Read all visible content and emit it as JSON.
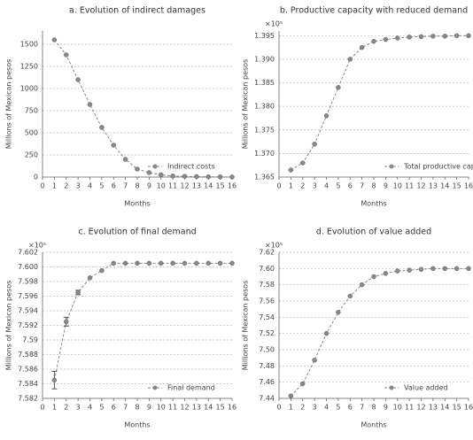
{
  "chart_data": [
    {
      "type": "line",
      "title": "a. Evolution of indirect damages",
      "xlabel": "Months",
      "ylabel": "Millions of Mexican pesos",
      "x": [
        1,
        2,
        3,
        4,
        5,
        6,
        7,
        8,
        9,
        10,
        11,
        12,
        13,
        14,
        15,
        16
      ],
      "series": [
        {
          "name": "Indirect costs",
          "color": "#888888",
          "values": [
            1550,
            1380,
            1100,
            820,
            560,
            360,
            200,
            90,
            50,
            25,
            12,
            8,
            5,
            3,
            2,
            1
          ]
        }
      ],
      "xlim": [
        0,
        16
      ],
      "xticks": [
        0,
        1,
        2,
        3,
        4,
        5,
        6,
        7,
        8,
        9,
        10,
        11,
        12,
        13,
        14,
        15,
        16
      ],
      "ylim": [
        0,
        1650
      ],
      "yticks": [
        0,
        250,
        500,
        750,
        1000,
        1250,
        1500
      ],
      "grid": true,
      "legend": "lower right"
    },
    {
      "type": "line",
      "title": "b. Productive capacity with reduced demand",
      "xlabel": "Months",
      "ylabel": "Millions of Mexican pesos",
      "axis_multiplier": "×10⁵",
      "x": [
        1,
        2,
        3,
        4,
        5,
        6,
        7,
        8,
        9,
        10,
        11,
        12,
        13,
        14,
        15,
        16
      ],
      "series": [
        {
          "name": "Total productive capacity",
          "color": "#888888",
          "values": [
            1.3665,
            1.368,
            1.372,
            1.378,
            1.384,
            1.39,
            1.3925,
            1.3938,
            1.3942,
            1.3945,
            1.3947,
            1.3948,
            1.3949,
            1.3949,
            1.395,
            1.395
          ]
        }
      ],
      "xlim": [
        0,
        16
      ],
      "xticks": [
        0,
        1,
        2,
        3,
        4,
        5,
        6,
        7,
        8,
        9,
        10,
        11,
        12,
        13,
        14,
        15,
        16
      ],
      "ylim": [
        1.365,
        1.396
      ],
      "yticks": [
        1.365,
        {
          "value": 1.37,
          "label": "1.370"
        },
        1.375,
        {
          "value": 1.38,
          "label": "1.380"
        },
        1.385,
        {
          "value": 1.39,
          "label": "1.390"
        },
        1.395
      ],
      "grid": true,
      "legend": "lower right"
    },
    {
      "type": "line",
      "title": "c. Evolution of final demand",
      "xlabel": "Months",
      "ylabel": "Millions of Mexican pesos",
      "axis_multiplier": "×10⁵",
      "x": [
        1,
        2,
        3,
        4,
        5,
        6,
        7,
        8,
        9,
        10,
        11,
        12,
        13,
        14,
        15,
        16
      ],
      "series": [
        {
          "name": "Final demand",
          "color": "#888888",
          "values": [
            7.5845,
            7.5925,
            7.5965,
            7.5985,
            7.5995,
            7.6005,
            7.6005,
            7.6005,
            7.6005,
            7.6005,
            7.6005,
            7.6005,
            7.6005,
            7.6005,
            7.6005,
            7.6005
          ],
          "errors": [
            0.0012,
            0.0006,
            0.0003,
            null,
            null,
            null,
            null,
            null,
            null,
            null,
            null,
            null,
            null,
            null,
            null,
            null
          ]
        }
      ],
      "xlim": [
        0,
        16
      ],
      "xticks": [
        0,
        1,
        2,
        3,
        4,
        5,
        6,
        7,
        8,
        9,
        10,
        11,
        12,
        13,
        14,
        15,
        16
      ],
      "ylim": [
        7.582,
        7.602
      ],
      "yticks": [
        7.582,
        7.584,
        7.586,
        7.588,
        7.59,
        7.592,
        7.594,
        7.596,
        7.598,
        {
          "value": 7.6,
          "label": "7.600"
        },
        7.602
      ],
      "grid": true,
      "legend": "lower right"
    },
    {
      "type": "line",
      "title": "d. Evolution of value added",
      "xlabel": "Months",
      "ylabel": "Millions of Mexican pesos",
      "axis_multiplier": "×10⁵",
      "x": [
        1,
        2,
        3,
        4,
        5,
        6,
        7,
        8,
        9,
        10,
        11,
        12,
        13,
        14,
        15,
        16
      ],
      "series": [
        {
          "name": "Value added",
          "color": "#888888",
          "values": [
            7.443,
            7.458,
            7.487,
            7.52,
            7.546,
            7.566,
            7.58,
            7.59,
            7.594,
            7.597,
            7.598,
            7.599,
            7.6,
            7.6,
            7.6,
            7.6
          ]
        }
      ],
      "xlim": [
        0,
        16
      ],
      "xticks": [
        0,
        1,
        2,
        3,
        4,
        5,
        6,
        7,
        8,
        9,
        10,
        11,
        12,
        13,
        14,
        15,
        16
      ],
      "ylim": [
        7.44,
        7.62
      ],
      "yticks": [
        7.44,
        7.46,
        7.48,
        {
          "value": 7.5,
          "label": "7.50"
        },
        7.52,
        7.54,
        7.56,
        7.58,
        {
          "value": 7.6,
          "label": "7.60"
        },
        7.62
      ],
      "grid": true,
      "legend": "lower right"
    }
  ]
}
